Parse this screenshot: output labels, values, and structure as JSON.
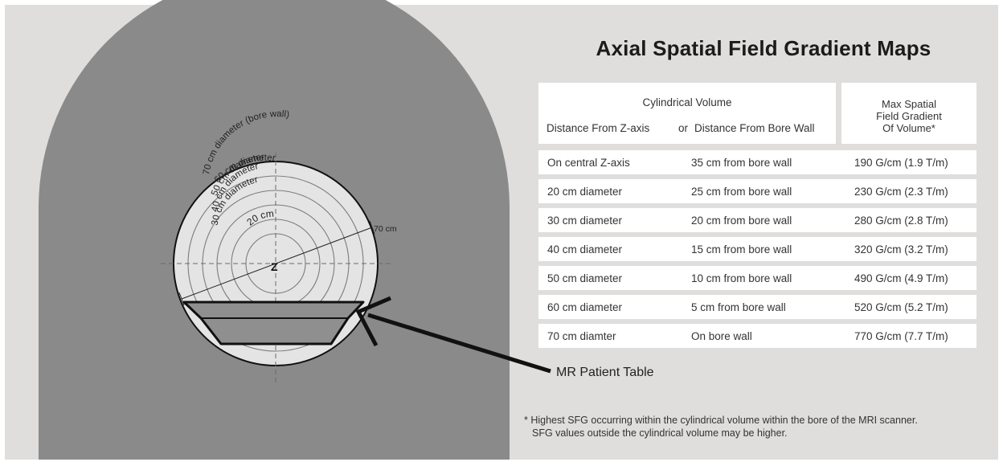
{
  "title": "Axial Spatial Field Gradient Maps",
  "table": {
    "header_volume": "Cylindrical Volume",
    "header_z_axis": "Distance From Z-axis",
    "header_or": "or",
    "header_bore_wall": "Distance From Bore Wall",
    "header_max": [
      "Max Spatial",
      "Field Gradient",
      "Of Volume*"
    ],
    "rows": [
      {
        "z_axis": "On central Z-axis",
        "bore_wall": "35 cm from bore wall",
        "max": "190 G/cm (1.9 T/m)"
      },
      {
        "z_axis": "20 cm diameter",
        "bore_wall": "25 cm from bore wall",
        "max": "230 G/cm (2.3 T/m)"
      },
      {
        "z_axis": "30 cm diameter",
        "bore_wall": "20 cm from bore wall",
        "max": "280 G/cm (2.8 T/m)"
      },
      {
        "z_axis": "40 cm diameter",
        "bore_wall": "15 cm from bore wall",
        "max": "320 G/cm (3.2 T/m)"
      },
      {
        "z_axis": "50 cm diameter",
        "bore_wall": "10 cm from bore wall",
        "max": "490 G/cm (4.9 T/m)"
      },
      {
        "z_axis": "60 cm diameter",
        "bore_wall": "5 cm from bore wall",
        "max": "520 G/cm (5.2 T/m)"
      },
      {
        "z_axis": "70 cm diamter",
        "bore_wall": "On bore wall",
        "max": "770 G/cm (7.7 T/m)"
      }
    ]
  },
  "diagram": {
    "ring_labels": [
      "70 cm diameter (bore wall)",
      "60 cm diameter",
      "50 cm diameter",
      "40 cm diameter",
      "30 cm diameter",
      "20 cm"
    ],
    "center_label": "Z",
    "dimension_label": "70 cm",
    "table_label": "MR Patient Table"
  },
  "footnote": {
    "line1": "* Highest SFG occurring within the cylindrical volume within the bore of the MRI scanner.",
    "line2": "SFG values outside the cylindrical volume may be higher."
  },
  "colors": {
    "background": "#dfdedd",
    "magnet": "#8a8a8a",
    "bore": "#e4e4e4",
    "patient_table": "#8f8f8f"
  }
}
